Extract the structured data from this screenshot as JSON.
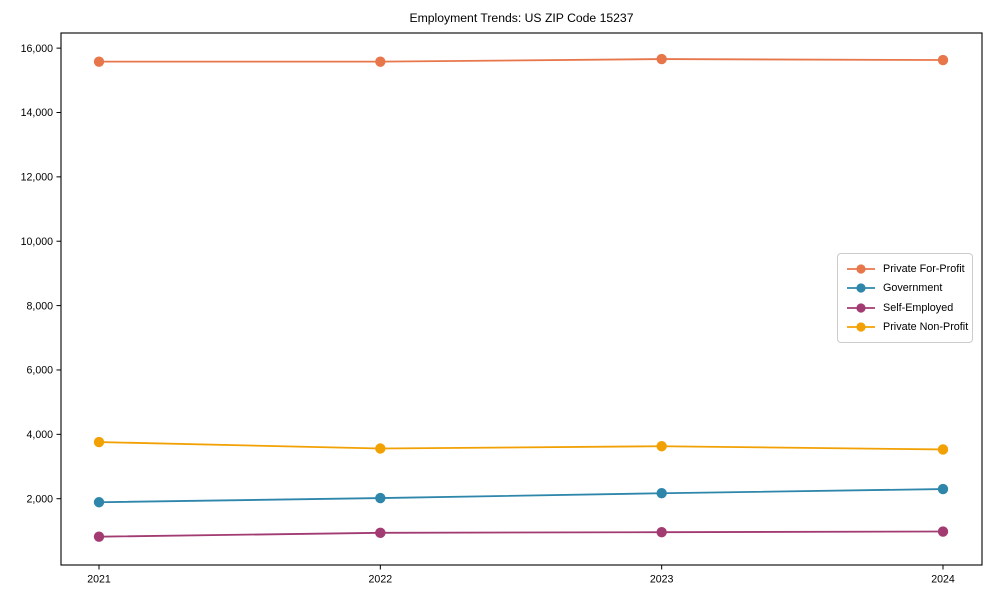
{
  "chart_data": {
    "type": "line",
    "title": "Employment Trends: US ZIP Code 15237",
    "xlabel": "",
    "ylabel": "",
    "categories": [
      "2021",
      "2022",
      "2023",
      "2024"
    ],
    "series": [
      {
        "name": "Private For-Profit",
        "color": "#E8764B",
        "values": [
          15580,
          15580,
          15660,
          15630
        ]
      },
      {
        "name": "Government",
        "color": "#2E86AB",
        "values": [
          1890,
          2020,
          2170,
          2300
        ]
      },
      {
        "name": "Self-Employed",
        "color": "#A23B72",
        "values": [
          820,
          940,
          960,
          980
        ]
      },
      {
        "name": "Private Non-Profit",
        "color": "#F2A104",
        "values": [
          3760,
          3560,
          3630,
          3530
        ]
      }
    ],
    "yticks": [
      {
        "value": 2000,
        "label": "2,000"
      },
      {
        "value": 4000,
        "label": "4,000"
      },
      {
        "value": 6000,
        "label": "6,000"
      },
      {
        "value": 8000,
        "label": "8,000"
      },
      {
        "value": 10000,
        "label": "10,000"
      },
      {
        "value": 12000,
        "label": "12,000"
      },
      {
        "value": 14000,
        "label": "14,000"
      },
      {
        "value": 16000,
        "label": "16,000"
      }
    ],
    "ylim": [
      -60,
      16470
    ],
    "grid": false,
    "legend_position": "center right",
    "axes_box": true
  }
}
